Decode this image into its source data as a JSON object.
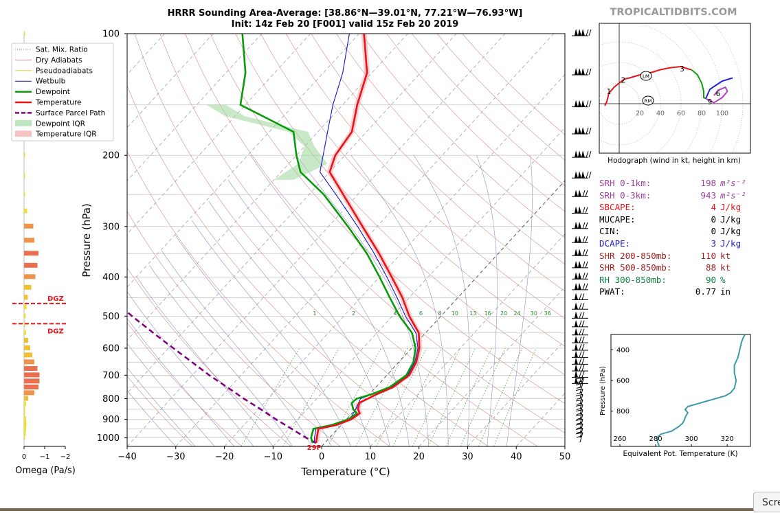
{
  "header": {
    "title_line1": "HRRR Sounding Area-Average: [38.86°N—39.01°N, 77.21°W—76.93°W]",
    "title_line2": "Init: 14z Feb 20 [F001] valid 15z Feb 20 2019",
    "site": "TROPICALTIDBITS.COM"
  },
  "colors": {
    "temperature": "#e8141c",
    "dewpoint": "#0a9a0a",
    "parcel": "#800080",
    "wetbulb": "#1414c8",
    "dry_adiabat": "#d88a8a",
    "moist_adiabat": "#8f8fd0",
    "mixing_ratio": "#2a8a2a",
    "isobar": "#c8c8c8",
    "dgz": "#e8141c",
    "theta_e": "#3a9aa8"
  },
  "legend": {
    "items": [
      {
        "label": "Sat. Mix. Ratio",
        "style": "dotted-gray"
      },
      {
        "label": "Dry Adiabats",
        "style": "thin-pink"
      },
      {
        "label": "Pseudoadiabats",
        "style": "thin-yellow"
      },
      {
        "label": "Wetbulb",
        "style": "thin-blue"
      },
      {
        "label": "Dewpoint",
        "style": "thick-green"
      },
      {
        "label": "Temperature",
        "style": "thick-red"
      },
      {
        "label": "Surface Parcel Path",
        "style": "dashed-purple"
      },
      {
        "label": "Dewpoint IQR",
        "style": "fill-green"
      },
      {
        "label": "Temperature IQR",
        "style": "fill-red"
      }
    ]
  },
  "omega_panel": {
    "xlabel": "Omega (Pa/s)",
    "x_ticks": [
      "0",
      "−1",
      "−2"
    ],
    "dgz_label": "DGZ",
    "dgz_levels_hpa": [
      465,
      522
    ]
  },
  "hodograph": {
    "caption": "Hodograph (wind in kt, height in km)",
    "ring_labels": [
      "20",
      "40",
      "60",
      "80",
      "100"
    ],
    "height_markers": [
      "1",
      "2",
      "3",
      "6",
      "9"
    ],
    "storm_motion_markers": [
      "LM",
      "RM"
    ]
  },
  "stats": [
    {
      "label": "SRH 0-1km:",
      "value": "198",
      "unit": "m²s⁻²",
      "color": "#a040a0"
    },
    {
      "label": "SRH 0-3km:",
      "value": "943",
      "unit": "m²s⁻²",
      "color": "#a040a0"
    },
    {
      "label": "SBCAPE:",
      "value": "4",
      "unit": "J/kg",
      "color": "#e8141c"
    },
    {
      "label": "MUCAPE:",
      "value": "0",
      "unit": "J/kg",
      "color": "#000000"
    },
    {
      "label": "CIN:",
      "value": "0",
      "unit": "J/kg",
      "color": "#000000"
    },
    {
      "label": "DCAPE:",
      "value": "3",
      "unit": "J/kg",
      "color": "#2020d0"
    },
    {
      "label": "SHR 200-850mb:",
      "value": "110",
      "unit": "kt",
      "color": "#a02020"
    },
    {
      "label": "SHR 500-850mb:",
      "value": "88",
      "unit": "kt",
      "color": "#a02020"
    },
    {
      "label": "RH 300-850mb:",
      "value": "90",
      "unit": "%",
      "color": "#108040"
    },
    {
      "label": "PWAT:",
      "value": "0.77",
      "unit": "in",
      "color": "#000000"
    }
  ],
  "screenshot_button": "Scre",
  "chart_data": [
    {
      "type": "skew-t",
      "xlabel": "Temperature (°C)",
      "ylabel": "Pressure (hPa)",
      "xlim": [
        -40,
        50
      ],
      "ylim": [
        1050,
        100
      ],
      "y_scale": "log",
      "x_ticks": [
        -40,
        -30,
        -20,
        -10,
        0,
        10,
        20,
        30,
        40,
        50
      ],
      "x_tick_labels": [
        "−40",
        "−30",
        "−20",
        "−10",
        "0",
        "10",
        "20",
        "30",
        "40",
        "50"
      ],
      "y_ticks": [
        100,
        200,
        300,
        400,
        500,
        600,
        700,
        800,
        900,
        1000
      ],
      "mixing_ratio_labels": [
        "1",
        "2",
        "4",
        "6",
        "8",
        "10",
        "13",
        "16",
        "20",
        "24",
        "30",
        "36"
      ],
      "surface_temp_label": "29F",
      "series": [
        {
          "name": "Temperature",
          "pressure": [
            1030,
            1000,
            950,
            930,
            900,
            870,
            850,
            820,
            800,
            780,
            750,
            700,
            650,
            600,
            550,
            500,
            450,
            400,
            350,
            300,
            250,
            220,
            200,
            175,
            150,
            125,
            100
          ],
          "temp": [
            -1.8,
            -2.6,
            -4,
            -1,
            1,
            1.6,
            0.5,
            -0.5,
            0.5,
            1.5,
            3.5,
            4.6,
            3.6,
            1.6,
            -1.4,
            -6.5,
            -11.4,
            -17.5,
            -24.5,
            -33,
            -43,
            -50,
            -52,
            -53,
            -57,
            -61,
            -69
          ]
        },
        {
          "name": "Dewpoint",
          "pressure": [
            1030,
            1000,
            950,
            930,
            900,
            870,
            850,
            820,
            800,
            780,
            750,
            700,
            650,
            600,
            550,
            500,
            450,
            400,
            350,
            300,
            250,
            220,
            200,
            175,
            150,
            125,
            100
          ],
          "temp": [
            -2.5,
            -3.8,
            -5,
            -2,
            0.4,
            1,
            -0.5,
            -2,
            -1.8,
            0.5,
            2.8,
            4,
            3,
            0.8,
            -2.8,
            -8.5,
            -14,
            -20,
            -27,
            -36,
            -47,
            -56,
            -60,
            -65,
            -81,
            -86,
            -94
          ]
        },
        {
          "name": "Wetbulb",
          "pressure": [
            1030,
            1000,
            950,
            900,
            850,
            800,
            750,
            700,
            650,
            600,
            550,
            500,
            450,
            400,
            350,
            300,
            250,
            220,
            200,
            175,
            150,
            125,
            100
          ],
          "temp": [
            -2.1,
            -3.1,
            -4.5,
            0.7,
            0,
            -1,
            3.1,
            4.3,
            3.3,
            1.3,
            -2,
            -7.3,
            -12.5,
            -18.5,
            -25.5,
            -34,
            -44.5,
            -52,
            -54.5,
            -58,
            -62,
            -66,
            -72
          ]
        },
        {
          "name": "Surface Parcel Path",
          "pressure": [
            1030,
            1000,
            950,
            900,
            850,
            800,
            750,
            700,
            650,
            600,
            550,
            500,
            450,
            400,
            350,
            300
          ],
          "temp": [
            -1.8,
            -4.8,
            -9.5,
            -14.5,
            -19.5,
            -25,
            -30.5,
            -36.5,
            -42.5,
            -49,
            -56,
            -63.5,
            -71.5,
            -80.5,
            -90.5,
            -102
          ]
        },
        {
          "name": "Dewpoint IQR",
          "pressure": [
            230,
            210,
            190,
            175,
            160,
            150
          ],
          "temp_low": [
            -60,
            -58,
            -60,
            -66,
            -82,
            -88
          ],
          "temp_high": [
            -56,
            -52,
            -58,
            -62,
            -78,
            -84
          ]
        }
      ]
    },
    {
      "type": "bar",
      "orientation": "horizontal",
      "xlabel": "Omega (Pa/s)",
      "xlim": [
        0.2,
        -2.2
      ],
      "x_ticks": [
        0,
        -1,
        -2
      ],
      "pressure": [
        1000,
        975,
        950,
        925,
        900,
        875,
        850,
        825,
        800,
        775,
        750,
        725,
        700,
        675,
        650,
        625,
        600,
        575,
        550,
        525,
        500,
        475,
        450,
        425,
        400,
        375,
        350,
        325,
        300,
        275,
        250,
        225,
        200,
        175,
        150,
        125,
        100
      ],
      "values": [
        -0.05,
        -0.08,
        -0.1,
        -0.12,
        -0.1,
        -0.05,
        -0.03,
        -0.1,
        -0.2,
        -0.5,
        -0.7,
        -0.75,
        -0.75,
        -0.65,
        -0.5,
        -0.4,
        -0.3,
        -0.2,
        -0.1,
        -0.05,
        -0.08,
        -0.12,
        -0.18,
        -0.35,
        -0.55,
        -0.65,
        -0.7,
        -0.5,
        -0.45,
        -0.15,
        -0.03,
        -0.02,
        -0.02,
        0.05,
        -0.01,
        0.0,
        -0.01
      ],
      "highlighted_colors": [
        "#f0e14a",
        "#f0c33a",
        "#f0a040",
        "#e87a50",
        "#e86a50"
      ]
    },
    {
      "type": "line",
      "title": "Hodograph (wind in kt, height in km)",
      "x_ticks": [
        20,
        40,
        60,
        80,
        100
      ],
      "xlim": [
        -20,
        128
      ],
      "ylim": [
        -48,
        78
      ],
      "series": [
        {
          "name": "0-3km",
          "color": "#e8141c",
          "u": [
            -14,
            -12,
            -10,
            -5,
            0,
            5,
            10,
            20,
            30,
            40,
            50,
            60,
            66,
            70
          ],
          "v": [
            -2,
            2,
            10,
            16,
            20,
            24,
            25,
            28,
            30,
            33,
            35,
            36,
            34,
            33
          ]
        },
        {
          "name": "3-6km",
          "color": "#10a010",
          "u": [
            70,
            76,
            80,
            82,
            82,
            84
          ],
          "v": [
            33,
            28,
            20,
            12,
            6,
            5
          ]
        },
        {
          "name": "6-9km",
          "color": "#2020e0",
          "u": [
            84,
            88,
            94,
            100,
            110
          ],
          "v": [
            5,
            14,
            18,
            22,
            25
          ]
        },
        {
          "name": "9+km",
          "color": "#b040c0",
          "u": [
            84,
            92,
            100,
            105,
            103,
            96,
            92
          ],
          "v": [
            5,
            1,
            6,
            12,
            16,
            13,
            8
          ]
        }
      ],
      "markers": [
        {
          "label": "1",
          "u": -10,
          "v": 12
        },
        {
          "label": "2",
          "u": 4,
          "v": 23
        },
        {
          "label": "3",
          "u": 61,
          "v": 34
        },
        {
          "label": "6",
          "u": 96,
          "v": 10
        },
        {
          "label": "9",
          "u": 88,
          "v": 2
        },
        {
          "label": "LM",
          "u": 26,
          "v": 27
        },
        {
          "label": "RM",
          "u": 28,
          "v": 3
        }
      ]
    },
    {
      "type": "line",
      "xlabel": "Equivalent Pot. Temperature (K)",
      "ylabel": "Pressure (hPa)",
      "xlim": [
        255,
        333
      ],
      "ylim": [
        1030,
        300
      ],
      "x_ticks": [
        260,
        280,
        300,
        320
      ],
      "y_ticks": [
        400,
        600,
        800
      ],
      "series": [
        {
          "name": "theta-e",
          "color": "#3a9aa8",
          "pressure": [
            1030,
            1000,
            970,
            950,
            930,
            900,
            880,
            860,
            840,
            810,
            790,
            770,
            750,
            720,
            700,
            680,
            650,
            600,
            550,
            500,
            450,
            400,
            350,
            320,
            300
          ],
          "theta_e": [
            282,
            281,
            281,
            283,
            289,
            293,
            295,
            296,
            296.5,
            298,
            296.5,
            298,
            304,
            313,
            319,
            322,
            324,
            325,
            324,
            324,
            326,
            327,
            328,
            329,
            330
          ]
        }
      ]
    }
  ]
}
